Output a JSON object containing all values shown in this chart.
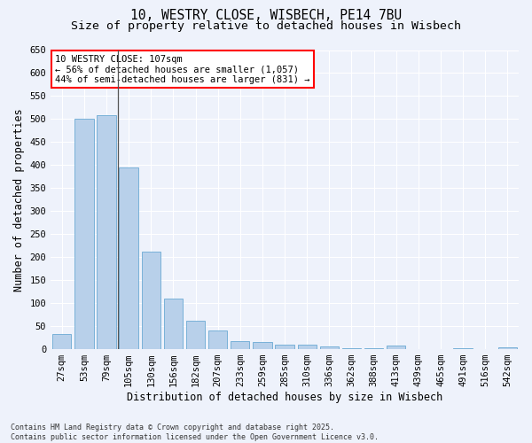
{
  "title_line1": "10, WESTRY CLOSE, WISBECH, PE14 7BU",
  "title_line2": "Size of property relative to detached houses in Wisbech",
  "xlabel": "Distribution of detached houses by size in Wisbech",
  "ylabel": "Number of detached properties",
  "footnote": "Contains HM Land Registry data © Crown copyright and database right 2025.\nContains public sector information licensed under the Open Government Licence v3.0.",
  "categories": [
    "27sqm",
    "53sqm",
    "79sqm",
    "105sqm",
    "130sqm",
    "156sqm",
    "182sqm",
    "207sqm",
    "233sqm",
    "259sqm",
    "285sqm",
    "310sqm",
    "336sqm",
    "362sqm",
    "388sqm",
    "413sqm",
    "439sqm",
    "465sqm",
    "491sqm",
    "516sqm",
    "542sqm"
  ],
  "values": [
    33,
    500,
    508,
    395,
    212,
    110,
    62,
    40,
    18,
    15,
    10,
    9,
    6,
    2,
    2,
    7,
    1,
    0,
    3,
    0,
    4
  ],
  "bar_color": "#b8d0ea",
  "bar_edge_color": "#6aaad4",
  "annotation_box_text": "10 WESTRY CLOSE: 107sqm\n← 56% of detached houses are smaller (1,057)\n44% of semi-detached houses are larger (831) →",
  "vline_x": 2.5,
  "ylim": [
    0,
    650
  ],
  "yticks": [
    0,
    50,
    100,
    150,
    200,
    250,
    300,
    350,
    400,
    450,
    500,
    550,
    600,
    650
  ],
  "background_color": "#eef2fb",
  "grid_color": "#ffffff",
  "title_fontsize": 10.5,
  "subtitle_fontsize": 9.5,
  "axis_label_fontsize": 8.5,
  "tick_fontsize": 7.5,
  "annotation_fontsize": 7.5,
  "footnote_fontsize": 6.0
}
